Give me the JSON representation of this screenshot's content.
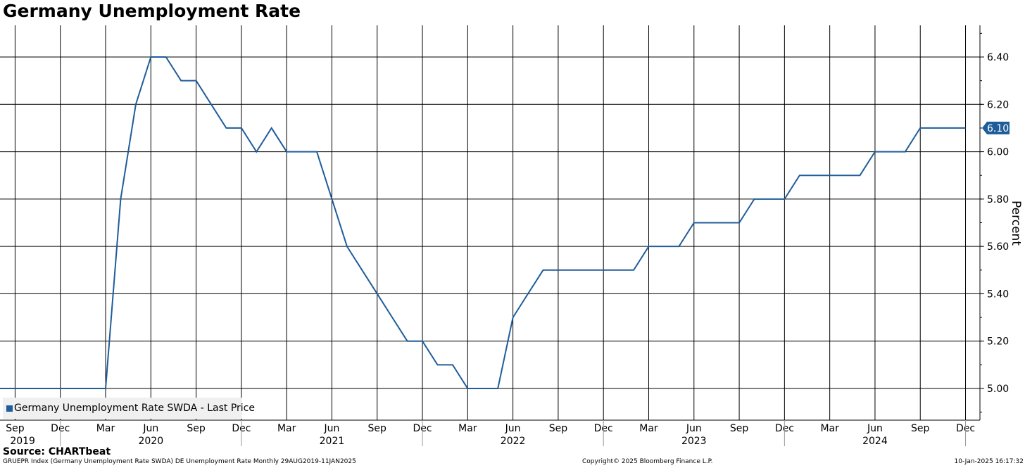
{
  "title": "Germany Unemployment Rate",
  "source": "Source: CHARTbeat",
  "footer": {
    "left": "GRUEPR Index (Germany Unemployment Rate SWDA) DE Unemployment Rate  Monthly 29AUG2019-11JAN2025",
    "middle": "Copyright© 2025 Bloomberg Finance L.P.",
    "right": "10-Jan-2025 16:17:32"
  },
  "colors": {
    "line": "#1f5d9a",
    "grid": "#000000",
    "legend_bg": "#f0f0f0"
  },
  "chart_data": {
    "type": "line",
    "title": "Germany Unemployment Rate",
    "ylabel": "Percent",
    "ylim": [
      4.86,
      6.53
    ],
    "yticks": [
      "5.00",
      "5.20",
      "5.40",
      "5.60",
      "5.80",
      "6.00",
      "6.20",
      "6.40"
    ],
    "grid": true,
    "legend_position": "bottom-left",
    "last_value_label": "6.10",
    "x_month_ticks": [
      "Sep",
      "Dec",
      "Mar",
      "Jun",
      "Sep",
      "Dec",
      "Mar",
      "Jun",
      "Sep",
      "Dec",
      "Mar",
      "Jun",
      "Sep",
      "Dec",
      "Mar",
      "Jun",
      "Sep",
      "Dec",
      "Mar",
      "Jun",
      "Sep",
      "Dec"
    ],
    "x_year_labels": [
      "2019",
      "2020",
      "2021",
      "2022",
      "2023",
      "2024"
    ],
    "series": [
      {
        "name": "Germany Unemployment Rate SWDA - Last Price",
        "x": [
          "2019-08",
          "2019-09",
          "2019-10",
          "2019-11",
          "2019-12",
          "2020-01",
          "2020-02",
          "2020-03",
          "2020-04",
          "2020-05",
          "2020-06",
          "2020-07",
          "2020-08",
          "2020-09",
          "2020-10",
          "2020-11",
          "2020-12",
          "2021-01",
          "2021-02",
          "2021-03",
          "2021-04",
          "2021-05",
          "2021-06",
          "2021-07",
          "2021-08",
          "2021-09",
          "2021-10",
          "2021-11",
          "2021-12",
          "2022-01",
          "2022-02",
          "2022-03",
          "2022-04",
          "2022-05",
          "2022-06",
          "2022-07",
          "2022-08",
          "2022-09",
          "2022-10",
          "2022-11",
          "2022-12",
          "2023-01",
          "2023-02",
          "2023-03",
          "2023-04",
          "2023-05",
          "2023-06",
          "2023-07",
          "2023-08",
          "2023-09",
          "2023-10",
          "2023-11",
          "2023-12",
          "2024-01",
          "2024-02",
          "2024-03",
          "2024-04",
          "2024-05",
          "2024-06",
          "2024-07",
          "2024-08",
          "2024-09",
          "2024-10",
          "2024-11",
          "2024-12"
        ],
        "values": [
          5.0,
          5.0,
          5.0,
          5.0,
          5.0,
          5.0,
          5.0,
          5.0,
          5.8,
          6.2,
          6.4,
          6.4,
          6.3,
          6.3,
          6.2,
          6.1,
          6.1,
          6.0,
          6.1,
          6.0,
          6.0,
          6.0,
          5.8,
          5.6,
          5.5,
          5.4,
          5.3,
          5.2,
          5.2,
          5.1,
          5.1,
          5.0,
          5.0,
          5.0,
          5.3,
          5.4,
          5.5,
          5.5,
          5.5,
          5.5,
          5.5,
          5.5,
          5.5,
          5.6,
          5.6,
          5.6,
          5.7,
          5.7,
          5.7,
          5.7,
          5.8,
          5.8,
          5.8,
          5.9,
          5.9,
          5.9,
          5.9,
          5.9,
          6.0,
          6.0,
          6.0,
          6.1,
          6.1,
          6.1,
          6.1
        ]
      }
    ]
  }
}
